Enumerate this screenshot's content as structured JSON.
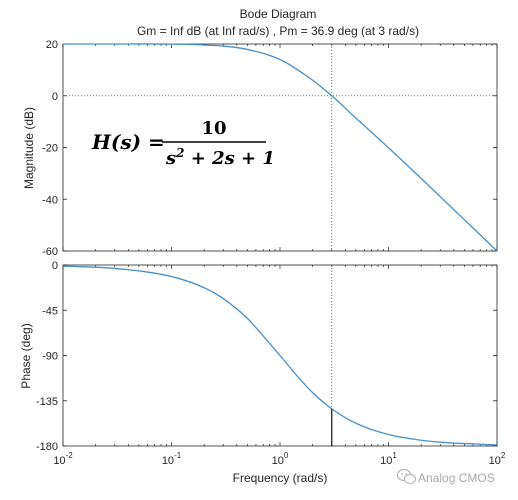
{
  "chart_data": [
    {
      "type": "line",
      "title": "Bode Diagram",
      "subtitle": "Gm = Inf dB (at Inf rad/s) ,  Pm = 36.9 deg (at 3 rad/s)",
      "ylabel": "Magnitude (dB)",
      "xscale": "log",
      "xlim": [
        0.01,
        100
      ],
      "ylim": [
        -60,
        20
      ],
      "yticks": [
        "20",
        "0",
        "-20",
        "-40",
        "-60"
      ],
      "grid": false,
      "series": [
        {
          "x": [
            0.01,
            0.03,
            0.1,
            0.3,
            0.5,
            1,
            2,
            3,
            5,
            10,
            30,
            100
          ],
          "y": [
            20,
            20,
            19.96,
            19.2,
            17.9,
            14,
            6,
            0,
            -8.6,
            -20.1,
            -39,
            -60
          ],
          "color": "#4a90c8"
        }
      ],
      "reference_lines": [
        {
          "orientation": "horizontal",
          "y": 0,
          "style": "dotted"
        },
        {
          "orientation": "vertical",
          "x": 3,
          "style": "dotted"
        }
      ],
      "annotation": {
        "lhs": "H(s) =",
        "numerator": "10",
        "den_s": "s",
        "den_exp": "2",
        "den_rest": " + 2s + 1"
      }
    },
    {
      "type": "line",
      "ylabel": "Phase (deg)",
      "xlabel": "Frequency  (rad/s)",
      "xscale": "log",
      "xlim": [
        0.01,
        100
      ],
      "ylim": [
        -180,
        0
      ],
      "yticks": [
        "0",
        "-45",
        "-90",
        "-135",
        "-180"
      ],
      "xticks": [
        {
          "base": "10",
          "exp": "-2"
        },
        {
          "base": "10",
          "exp": "-1"
        },
        {
          "base": "10",
          "exp": "0"
        },
        {
          "base": "10",
          "exp": "1"
        },
        {
          "base": "10",
          "exp": "2"
        }
      ],
      "grid": false,
      "series": [
        {
          "x": [
            0.01,
            0.03,
            0.1,
            0.2,
            0.3,
            0.5,
            0.7,
            1,
            1.5,
            2,
            3,
            5,
            10,
            20,
            30,
            100
          ],
          "y": [
            -1.1,
            -3.4,
            -11.5,
            -22.6,
            -33.4,
            -53.1,
            -70.5,
            -90,
            -112.6,
            -126.9,
            -143.1,
            -157.4,
            -168.6,
            -174.3,
            -176.2,
            -178.9
          ],
          "color": "#4a90c8"
        }
      ],
      "reference_lines": [
        {
          "orientation": "horizontal",
          "y": -180,
          "style": "dotted"
        },
        {
          "orientation": "vertical",
          "x": 3,
          "style": "dotted"
        }
      ],
      "markers": [
        {
          "x": 3,
          "from": -180,
          "to": -143.1,
          "style": "solid"
        }
      ]
    }
  ],
  "watermark": "Analog CMOS",
  "watermark_icon": "wechat-icon"
}
